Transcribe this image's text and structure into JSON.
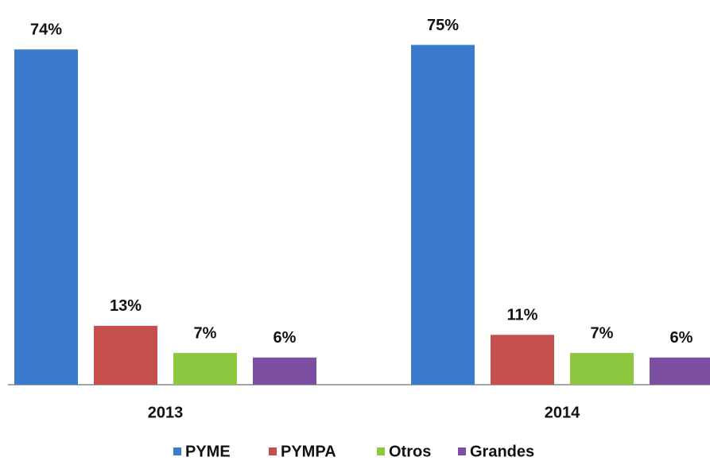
{
  "chart_data": {
    "type": "bar",
    "categories": [
      "2013",
      "2014"
    ],
    "series": [
      {
        "name": "PYME",
        "color": "#3a7bcc",
        "values": [
          74,
          75
        ],
        "value_labels": [
          "74%",
          "75%"
        ]
      },
      {
        "name": "PYMPA",
        "color": "#c44f4c",
        "values": [
          13,
          11
        ],
        "value_labels": [
          "13%",
          "11%"
        ]
      },
      {
        "name": "Otros",
        "color": "#8dc63f",
        "values": [
          7,
          7
        ],
        "value_labels": [
          "7%",
          "7%"
        ]
      },
      {
        "name": "Grandes",
        "color": "#7d4fa3",
        "values": [
          6,
          6
        ],
        "value_labels": [
          "6%",
          "6%"
        ]
      }
    ],
    "legend": "bottom"
  }
}
